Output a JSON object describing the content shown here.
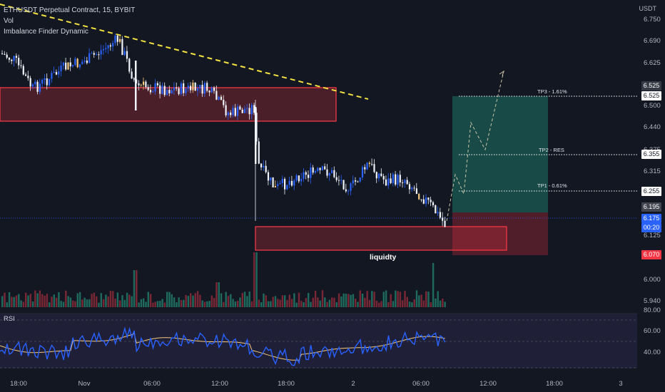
{
  "legend": {
    "symbol_line": "ETHUSDT Perpetual Contract, 15, BYBIT",
    "indicator_vol": "Vol",
    "indicator_imbalance": "Imbalance Finder Dynamic"
  },
  "currency_label": "USDT",
  "rsi_title": "RSI",
  "price_axis": [
    "6.750",
    "6.690",
    "6.625",
    "6.500",
    "6.440",
    "6.375",
    "6.315",
    "6.125",
    "6.000",
    "5.940"
  ],
  "rsi_axis": [
    "80.00",
    "60.00",
    "40.00"
  ],
  "time_axis": [
    "18:00",
    "Nov",
    "06:00",
    "12:00",
    "18:00",
    "2",
    "06:00",
    "12:00",
    "18:00",
    "3"
  ],
  "price_tags": {
    "tp3": {
      "text": "6.525",
      "color": "#363a45"
    },
    "tp3_hl": {
      "text": "6.525",
      "color": "#ffffff"
    },
    "tp2": {
      "text": "6.355",
      "color": "#ffffff"
    },
    "tp1": {
      "text": "6.255",
      "color": "#ffffff"
    },
    "last_high": {
      "text": "6.195",
      "color": "#434651"
    },
    "current": {
      "text": "6.175",
      "color": "#2962ff"
    },
    "countdown": {
      "text": "00:20",
      "color": "#2962ff"
    },
    "stop": {
      "text": "6.070",
      "color": "#f23645"
    }
  },
  "targets": {
    "tp3": "TP3 - 1.61%",
    "tp2": "TP2 - RES",
    "tp1": "TP1 - 0.61%"
  },
  "annotation": "liquidty",
  "colors": {
    "background": "#131722",
    "bull": "#2962ff",
    "bear": "#f0f3fa",
    "imbalance": "#f7c97c",
    "trendline": "#f5e342",
    "zone_border": "#f23645",
    "profit_zone": "#1b5e54",
    "loss_zone": "#5c1f2b",
    "rsi": "#2962ff",
    "rsi_ma": "#f7c97c"
  }
}
